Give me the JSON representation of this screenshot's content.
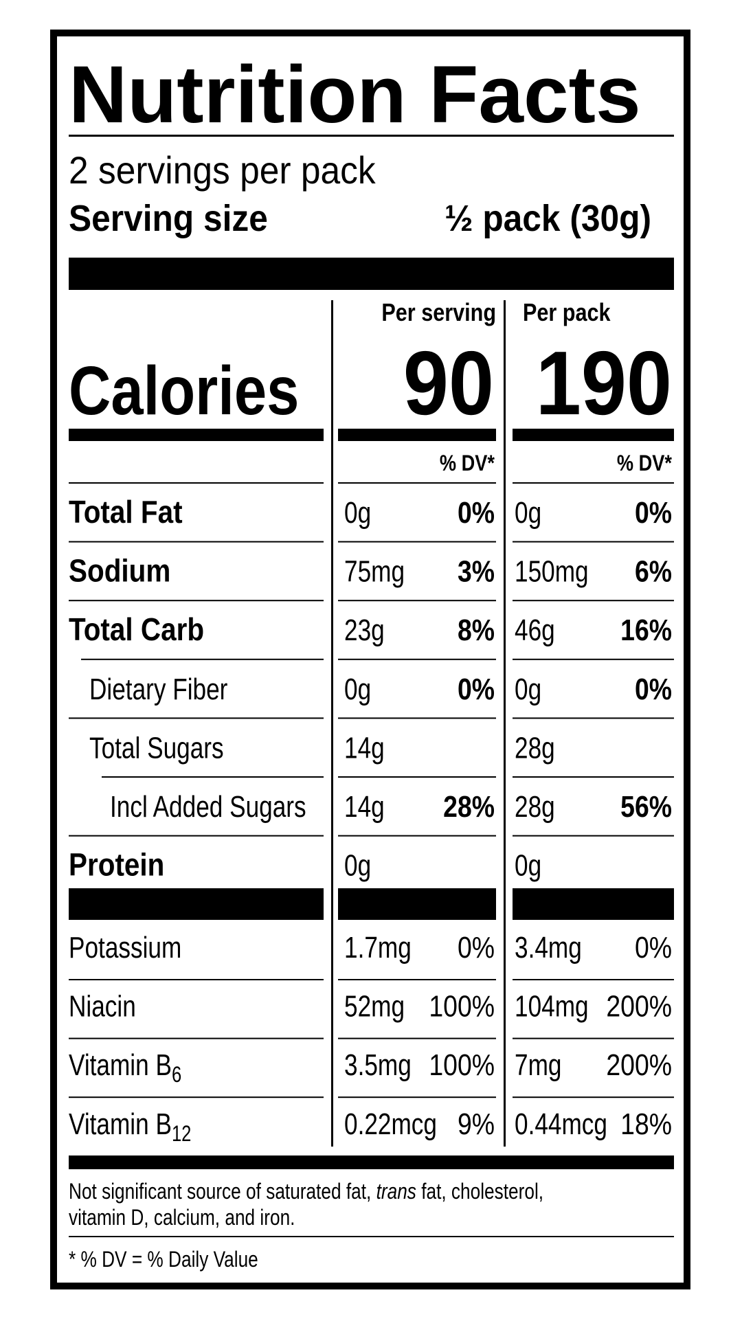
{
  "title": "Nutrition Facts",
  "servings": "2 servings per pack",
  "serving_size": {
    "label": "Serving size",
    "value": "½ pack (30g)"
  },
  "columns": [
    "Per serving",
    "Per pack"
  ],
  "calories": {
    "label": "Calories",
    "values": [
      90,
      190
    ]
  },
  "dv_headers": [
    "% DV*",
    "% DV*"
  ],
  "rows": [
    {
      "label": "Total Fat",
      "bold": true,
      "indent": 0,
      "cells": [
        [
          "0g",
          "0%"
        ],
        [
          "0g",
          "0%"
        ]
      ]
    },
    {
      "label": "Sodium",
      "bold": true,
      "indent": 0,
      "cells": [
        [
          "75mg",
          "3%"
        ],
        [
          "150mg",
          "6%"
        ]
      ]
    },
    {
      "label": "Total Carb",
      "bold": true,
      "indent": 0,
      "cells": [
        [
          "23g",
          "8%"
        ],
        [
          "46g",
          "16%"
        ]
      ]
    },
    {
      "label": "Dietary Fiber",
      "bold": false,
      "indent": 1,
      "cells": [
        [
          "0g",
          "0%"
        ],
        [
          "0g",
          "0%"
        ]
      ]
    },
    {
      "label": "Total Sugars",
      "bold": false,
      "indent": 1,
      "cells": [
        [
          "14g"
        ],
        [
          "28g"
        ]
      ]
    },
    {
      "label": "Incl Added Sugars",
      "bold": false,
      "indent": 2,
      "cells": [
        [
          "14g",
          "28%"
        ],
        [
          "28g",
          "56%"
        ]
      ]
    },
    {
      "label": "Protein",
      "bold": true,
      "indent": 0,
      "cells": [
        [
          "0g"
        ],
        [
          "0g"
        ]
      ]
    }
  ],
  "vitamins": [
    {
      "label": "Potassium",
      "cells": [
        [
          "1.7mg",
          "0%"
        ],
        [
          "3.4mg",
          "0%"
        ]
      ]
    },
    {
      "label": "Niacin",
      "cells": [
        [
          "52mg",
          "100%"
        ],
        [
          "104mg",
          "200%"
        ]
      ]
    },
    {
      "label": "Vitamin B",
      "sub": "6",
      "cells": [
        [
          "3.5mg",
          "100%"
        ],
        [
          "7mg",
          "200%"
        ]
      ]
    },
    {
      "label": "Vitamin B",
      "sub": "12",
      "cells": [
        [
          "0.22mcg",
          "9%"
        ],
        [
          "0.44mcg",
          "18%"
        ]
      ]
    }
  ],
  "footnote": {
    "line1": {
      "before": "Not significant source of saturated fat, ",
      "italic": "trans",
      "after": " fat, cholesterol,"
    },
    "line2": "vitamin D, calcium, and iron."
  },
  "dv_note": "* % DV = % Daily Value"
}
